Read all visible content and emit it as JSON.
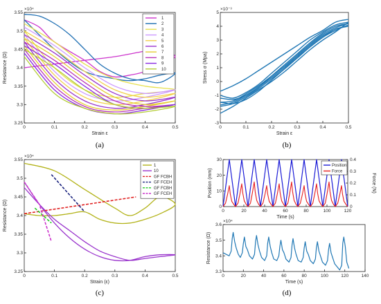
{
  "chart_data": [
    {
      "panel": "a",
      "caption": "(a)",
      "type": "line",
      "xlabel": "Strain ε",
      "ylabel": "Resistance (Ω)",
      "exponent_label": "×10⁴",
      "xlim": [
        0,
        0.5
      ],
      "ylim": [
        3.25,
        3.55
      ],
      "xticks": [
        "0",
        "0.1",
        "0.2",
        "0.3",
        "0.4",
        "0.5"
      ],
      "yticks": [
        "3.25",
        "3.3",
        "3.35",
        "3.4",
        "3.45",
        "3.5",
        "3.55"
      ],
      "legend_position": "top-right",
      "series": [
        {
          "name": "1",
          "color": "#cc33cc",
          "x": [
            0,
            0.1,
            0.2,
            0.3,
            0.4,
            0.45,
            0.5,
            0.45,
            0.4,
            0.35,
            0.3,
            0.25,
            0.2,
            0.1,
            0.05,
            0
          ],
          "y": [
            3.4,
            3.41,
            3.42,
            3.43,
            3.445,
            3.45,
            3.43,
            3.415,
            3.39,
            3.38,
            3.375,
            3.39,
            3.42,
            3.47,
            3.51,
            3.53
          ]
        },
        {
          "name": "2",
          "color": "#1f6fb3",
          "x": [
            0,
            0.05,
            0.1,
            0.15,
            0.2,
            0.25,
            0.3,
            0.35,
            0.4,
            0.45,
            0.5,
            0.45,
            0.4,
            0.35,
            0.3,
            0.2,
            0.1,
            0
          ],
          "y": [
            3.545,
            3.54,
            3.52,
            3.49,
            3.45,
            3.41,
            3.385,
            3.37,
            3.365,
            3.36,
            3.385,
            3.38,
            3.37,
            3.365,
            3.37,
            3.39,
            3.45,
            3.53
          ]
        },
        {
          "name": "3",
          "color": "#e6e04d",
          "x": [
            0,
            0.1,
            0.2,
            0.3,
            0.4,
            0.5,
            0.4,
            0.3,
            0.2,
            0.1,
            0
          ],
          "y": [
            3.52,
            3.47,
            3.41,
            3.37,
            3.35,
            3.34,
            3.33,
            3.32,
            3.34,
            3.4,
            3.5
          ]
        },
        {
          "name": "4",
          "color": "#cc99ff",
          "x": [
            0,
            0.1,
            0.2,
            0.3,
            0.4,
            0.5,
            0.4,
            0.3,
            0.2,
            0.1,
            0
          ],
          "y": [
            3.51,
            3.46,
            3.4,
            3.35,
            3.33,
            3.34,
            3.32,
            3.31,
            3.33,
            3.39,
            3.49
          ]
        },
        {
          "name": "5",
          "color": "#f2d04d",
          "x": [
            0,
            0.1,
            0.2,
            0.3,
            0.4,
            0.5,
            0.4,
            0.3,
            0.2,
            0.1,
            0
          ],
          "y": [
            3.5,
            3.45,
            3.39,
            3.34,
            3.32,
            3.33,
            3.31,
            3.3,
            3.32,
            3.38,
            3.48
          ]
        },
        {
          "name": "6",
          "color": "#9933cc",
          "x": [
            0,
            0.1,
            0.2,
            0.3,
            0.4,
            0.5,
            0.4,
            0.3,
            0.2,
            0.1,
            0
          ],
          "y": [
            3.49,
            3.44,
            3.38,
            3.33,
            3.31,
            3.32,
            3.3,
            3.29,
            3.31,
            3.37,
            3.47
          ]
        },
        {
          "name": "7",
          "color": "#e6cc33",
          "x": [
            0,
            0.1,
            0.2,
            0.3,
            0.4,
            0.5,
            0.4,
            0.3,
            0.2,
            0.1,
            0
          ],
          "y": [
            3.48,
            3.43,
            3.37,
            3.32,
            3.3,
            3.31,
            3.295,
            3.285,
            3.3,
            3.36,
            3.46
          ]
        },
        {
          "name": "8",
          "color": "#b833b8",
          "x": [
            0,
            0.1,
            0.2,
            0.3,
            0.4,
            0.5,
            0.4,
            0.3,
            0.2,
            0.1,
            0
          ],
          "y": [
            3.47,
            3.42,
            3.36,
            3.31,
            3.295,
            3.3,
            3.29,
            3.28,
            3.295,
            3.35,
            3.45
          ]
        },
        {
          "name": "9",
          "color": "#8a2be2",
          "x": [
            0,
            0.1,
            0.2,
            0.3,
            0.4,
            0.5,
            0.4,
            0.3,
            0.2,
            0.1,
            0
          ],
          "y": [
            3.46,
            3.41,
            3.35,
            3.3,
            3.29,
            3.3,
            3.285,
            3.275,
            3.29,
            3.34,
            3.44
          ]
        },
        {
          "name": "10",
          "color": "#b3cc33",
          "x": [
            0,
            0.1,
            0.2,
            0.3,
            0.4,
            0.5,
            0.4,
            0.3,
            0.2,
            0.1,
            0
          ],
          "y": [
            3.45,
            3.4,
            3.34,
            3.3,
            3.29,
            3.295,
            3.28,
            3.275,
            3.29,
            3.33,
            3.43
          ]
        }
      ]
    },
    {
      "panel": "b",
      "caption": "(b)",
      "type": "line",
      "xlabel": "Strain ε",
      "ylabel": "Stress σ (Mpa)",
      "exponent_label": "×10⁻³",
      "xlim": [
        0,
        0.5
      ],
      "ylim": [
        -3,
        5
      ],
      "xticks": [
        "0",
        "0.1",
        "0.2",
        "0.3",
        "0.4",
        "0.5"
      ],
      "yticks": [
        "-3",
        "-2",
        "-1",
        "0",
        "1",
        "2",
        "3",
        "4",
        "5"
      ],
      "series": [
        {
          "name": "",
          "color": "#1f77b4",
          "x": [
            0,
            0.05,
            0.1,
            0.15,
            0.2,
            0.25,
            0.3,
            0.35,
            0.4,
            0.45,
            0.5
          ],
          "y": [
            -1.2,
            -1.3,
            -1.0,
            -0.4,
            0.4,
            1.2,
            2.0,
            2.8,
            3.5,
            4.0,
            4.2
          ]
        },
        {
          "name": "",
          "color": "#1f77b4",
          "x": [
            0.5,
            0.45,
            0.4,
            0.35,
            0.3,
            0.25,
            0.2,
            0.15,
            0.1,
            0.05,
            0
          ],
          "y": [
            4.2,
            3.9,
            3.4,
            2.7,
            1.9,
            1.1,
            0.4,
            -0.3,
            -0.9,
            -1.4,
            -1.5
          ]
        },
        {
          "name": "",
          "color": "#1f77b4",
          "x": [
            0,
            0.05,
            0.1,
            0.15,
            0.2,
            0.25,
            0.3,
            0.35,
            0.4,
            0.45,
            0.5
          ],
          "y": [
            -1.5,
            -1.6,
            -1.3,
            -0.7,
            0.1,
            0.9,
            1.7,
            2.5,
            3.2,
            3.8,
            4.0
          ]
        },
        {
          "name": "",
          "color": "#1f77b4",
          "x": [
            0.5,
            0.45,
            0.4,
            0.35,
            0.3,
            0.25,
            0.2,
            0.15,
            0.1,
            0.05,
            0
          ],
          "y": [
            4.0,
            3.8,
            3.3,
            2.6,
            1.8,
            1.0,
            0.3,
            -0.4,
            -1.0,
            -1.5,
            -1.7
          ]
        },
        {
          "name": "",
          "color": "#1f77b4",
          "x": [
            0,
            0.05,
            0.1,
            0.15,
            0.2,
            0.25,
            0.3,
            0.35,
            0.4,
            0.45,
            0.5
          ],
          "y": [
            -0.7,
            -0.3,
            0.2,
            0.8,
            1.4,
            2.0,
            2.6,
            3.2,
            3.7,
            4.3,
            4.5
          ]
        },
        {
          "name": "",
          "color": "#1f77b4",
          "x": [
            0.5,
            0.45,
            0.4,
            0.35,
            0.3,
            0.25,
            0.2,
            0.15,
            0.1,
            0.05,
            0
          ],
          "y": [
            4.3,
            3.6,
            3.0,
            2.3,
            1.5,
            0.7,
            0.0,
            -0.6,
            -1.2,
            -1.8,
            -2.3
          ]
        },
        {
          "name": "",
          "color": "#1f77b4",
          "x": [
            0,
            0.05,
            0.1,
            0.15,
            0.2,
            0.25,
            0.3,
            0.35,
            0.4,
            0.45,
            0.5
          ],
          "y": [
            -1.0,
            -1.2,
            -0.8,
            -0.2,
            0.6,
            1.4,
            2.2,
            3.0,
            3.6,
            4.1,
            4.3
          ]
        },
        {
          "name": "",
          "color": "#1f77b4",
          "x": [
            0.5,
            0.45,
            0.4,
            0.35,
            0.3,
            0.25,
            0.2,
            0.15,
            0.1,
            0.05,
            0
          ],
          "y": [
            4.1,
            3.7,
            3.2,
            2.5,
            1.7,
            0.9,
            0.2,
            -0.5,
            -1.1,
            -1.6,
            -1.8
          ]
        }
      ]
    },
    {
      "panel": "c",
      "caption": "(c)",
      "type": "line",
      "xlabel": "Strain (ε)",
      "ylabel": "Resistance (Ω)",
      "exponent_label": "×10⁴",
      "xlim": [
        0,
        0.5
      ],
      "ylim": [
        3.25,
        3.55
      ],
      "xticks": [
        "0",
        "0.1",
        "0.2",
        "0.3",
        "0.4",
        "0.5"
      ],
      "yticks": [
        "3.25",
        "3.3",
        "3.35",
        "3.4",
        "3.45",
        "3.5",
        "3.55"
      ],
      "legend_position": "top-right",
      "series": [
        {
          "name": "1",
          "color": "#b3b31a",
          "dash": false,
          "x": [
            0,
            0.1,
            0.2,
            0.3,
            0.35,
            0.4,
            0.45,
            0.5,
            0.45,
            0.4,
            0.35,
            0.3,
            0.25,
            0.2,
            0.15,
            0.1,
            0.05,
            0
          ],
          "y": [
            3.54,
            3.52,
            3.47,
            3.42,
            3.4,
            3.42,
            3.45,
            3.43,
            3.405,
            3.39,
            3.38,
            3.38,
            3.39,
            3.41,
            3.405,
            3.4,
            3.4,
            3.405
          ]
        },
        {
          "name": "10",
          "color": "#9933cc",
          "dash": false,
          "x": [
            0,
            0.05,
            0.1,
            0.15,
            0.2,
            0.25,
            0.3,
            0.35,
            0.4,
            0.45,
            0.5,
            0.45,
            0.4,
            0.35,
            0.3,
            0.25,
            0.2,
            0.15,
            0.1,
            0.05,
            0
          ],
          "y": [
            3.475,
            3.43,
            3.39,
            3.36,
            3.33,
            3.305,
            3.29,
            3.28,
            3.285,
            3.29,
            3.295,
            3.295,
            3.29,
            3.28,
            3.28,
            3.29,
            3.31,
            3.34,
            3.38,
            3.43,
            3.49
          ]
        },
        {
          "name": "GF FCBH",
          "color": "#e02020",
          "dash": true,
          "x": [
            0,
            0.37
          ],
          "y": [
            3.405,
            3.45
          ]
        },
        {
          "name": "GF FCEH",
          "color": "#1a237e",
          "dash": true,
          "x": [
            0.09,
            0.2
          ],
          "y": [
            3.51,
            3.41
          ]
        },
        {
          "name": "GF FCBH",
          "color": "#22cc22",
          "dash": true,
          "x": [
            0.035,
            0.09
          ],
          "y": [
            3.42,
            3.38
          ]
        },
        {
          "name": "GF FCEH",
          "color": "#cc33cc",
          "dash": true,
          "x": [
            0,
            0.05,
            0.09
          ],
          "y": [
            3.49,
            3.43,
            3.33
          ]
        }
      ]
    },
    {
      "panel": "d-top",
      "caption": "(d)",
      "type": "line",
      "xlabel": "Time (s)",
      "ylabel_left": "Position (mm)",
      "ylabel_right": "Force (N)",
      "xlim": [
        0,
        120
      ],
      "ylim_left": [
        0,
        30
      ],
      "ylim_right": [
        0,
        0.4
      ],
      "xticks": [
        "0",
        "20",
        "40",
        "60",
        "80",
        "100",
        "120"
      ],
      "yticks_left": [
        "0",
        "10",
        "20",
        "30"
      ],
      "yticks_right": [
        "0",
        "0.1",
        "0.2",
        "0.3",
        "0.4"
      ],
      "legend_position": "top-right",
      "series": [
        {
          "name": "Position",
          "color": "#1a1ad6",
          "period_s": 12,
          "amplitude": 30,
          "cycles": 10
        },
        {
          "name": "Force",
          "color": "#e61a1a",
          "period_s": 12,
          "peak": 0.21,
          "cycles": 10
        }
      ]
    },
    {
      "panel": "d-bottom",
      "type": "line",
      "xlabel": "Time (s)",
      "ylabel": "Resistance (Ω)",
      "exponent_label": "×10⁴",
      "xlim": [
        0,
        140
      ],
      "ylim": [
        3.3,
        3.6
      ],
      "xticks": [
        "0",
        "20",
        "40",
        "60",
        "80",
        "100",
        "120",
        "140"
      ],
      "yticks": [
        "3.3",
        "3.4",
        "3.5",
        "3.6"
      ],
      "series": [
        {
          "name": "",
          "color": "#1f77b4",
          "peaks_t": [
            10,
            21,
            33,
            45,
            57,
            69,
            81,
            93,
            105,
            119
          ],
          "peaks_v": [
            3.55,
            3.52,
            3.53,
            3.52,
            3.5,
            3.51,
            3.49,
            3.49,
            3.48,
            3.52
          ],
          "baseline_v": [
            3.4,
            3.39,
            3.38,
            3.37,
            3.37,
            3.36,
            3.36,
            3.35,
            3.34,
            3.31
          ]
        }
      ]
    }
  ]
}
